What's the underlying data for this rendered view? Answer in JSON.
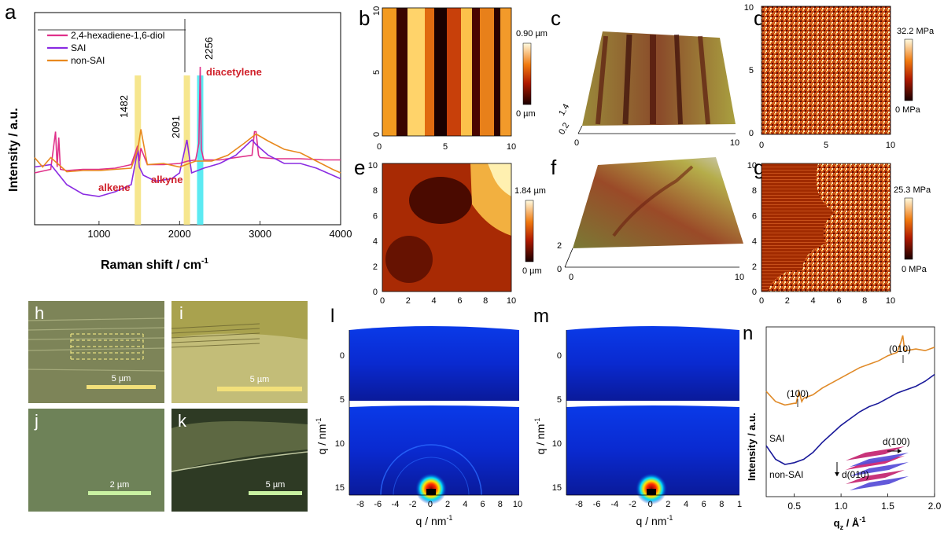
{
  "panels": {
    "a": {
      "letter": "a"
    },
    "b": {
      "letter": "b"
    },
    "c": {
      "letter": "c"
    },
    "d": {
      "letter": "d"
    },
    "e": {
      "letter": "e"
    },
    "f": {
      "letter": "f"
    },
    "g": {
      "letter": "g"
    },
    "h": {
      "letter": "h",
      "scale": "5 µm"
    },
    "i": {
      "letter": "i",
      "scale": "5 µm"
    },
    "j": {
      "letter": "j",
      "scale": "2 µm"
    },
    "k": {
      "letter": "k",
      "scale": "5 µm"
    },
    "l": {
      "letter": "l"
    },
    "m": {
      "letter": "m"
    },
    "n": {
      "letter": "n"
    }
  },
  "colors": {
    "diol": "#e0308a",
    "sai": "#8a2be2",
    "nonsai": "#e8891e",
    "alkene_band": "#f5e27a",
    "alkyne_band": "#f5e27a",
    "diacetylene_band": "#3fe6f0",
    "annotation_red": "#d0202a",
    "n_sai": "#e08a28",
    "n_nonsai": "#1a1a9a"
  },
  "chart_data": [
    {
      "id": "a",
      "type": "line",
      "xlabel": "Raman shift / cm",
      "xlabel_sup": "-1",
      "ylabel": "Intensity / a.u.",
      "xlim": [
        200,
        4000
      ],
      "xticks": [
        "1000",
        "2000",
        "3000",
        "4000"
      ],
      "legend": {
        "placement": "top-left",
        "entries": [
          "2,4-hexadiene-1,6-diol",
          "SAI",
          "non-SAI"
        ]
      },
      "peak_labels": [
        "2256",
        "1482",
        "2091"
      ],
      "annotations": [
        "diacetylene",
        "alkene",
        "alkyne"
      ],
      "bands": [
        1482,
        2091,
        2256
      ],
      "series": [
        {
          "name": "2,4-hexadiene-1,6-diol",
          "x": [
            200,
            400,
            460,
            480,
            500,
            520,
            600,
            800,
            1000,
            1200,
            1400,
            1480,
            1500,
            1520,
            1600,
            1800,
            2000,
            2100,
            2200,
            2240,
            2256,
            2270,
            2300,
            2500,
            2700,
            2900,
            2930,
            2950,
            2980,
            3000,
            3200,
            3500,
            3800,
            4000
          ],
          "y": [
            0.65,
            0.68,
            1.0,
            0.7,
            0.95,
            0.68,
            0.67,
            0.68,
            0.68,
            0.69,
            0.72,
            0.88,
            0.75,
            0.86,
            0.72,
            0.72,
            0.73,
            0.75,
            0.76,
            0.9,
            1.55,
            0.85,
            0.76,
            0.76,
            0.78,
            0.8,
            1.0,
            1.0,
            0.8,
            0.78,
            0.77,
            0.77,
            0.76,
            0.76
          ]
        },
        {
          "name": "SAI",
          "x": [
            200,
            400,
            600,
            800,
            1000,
            1200,
            1400,
            1482,
            1500,
            1550,
            1700,
            1900,
            2000,
            2091,
            2150,
            2300,
            2500,
            2700,
            2900,
            2950,
            3100,
            3300,
            3500,
            3700,
            3900,
            4000
          ],
          "y": [
            0.45,
            0.47,
            0.3,
            0.22,
            0.2,
            0.24,
            0.3,
            0.6,
            0.45,
            0.38,
            0.33,
            0.35,
            0.4,
            0.68,
            0.4,
            0.44,
            0.48,
            0.55,
            0.68,
            0.64,
            0.55,
            0.48,
            0.48,
            0.44,
            0.38,
            0.35
          ]
        },
        {
          "name": "non-SAI",
          "x": [
            200,
            300,
            400,
            600,
            800,
            1000,
            1200,
            1400,
            1482,
            1520,
            1600,
            1800,
            2000,
            2200,
            2400,
            2600,
            2800,
            2950,
            3100,
            3300,
            3500,
            3700,
            3900,
            4000
          ],
          "y": [
            0.08,
            0.0,
            0.08,
            -0.04,
            -0.03,
            -0.03,
            -0.02,
            -0.01,
            0.15,
            0.32,
            0.02,
            0.03,
            0.0,
            0.05,
            0.05,
            0.1,
            0.2,
            0.28,
            0.22,
            0.15,
            0.12,
            0.05,
            -0.02,
            -0.05
          ]
        }
      ]
    },
    {
      "id": "b",
      "type": "heatmap",
      "xticks": [
        "0",
        "5",
        "10"
      ],
      "yticks": [
        "0",
        "5",
        "10"
      ],
      "colorbar": {
        "max_label": "0.90 µm",
        "min_label": "0 µm"
      }
    },
    {
      "id": "c",
      "type": "heatmap",
      "xticks": [
        "0",
        "10"
      ],
      "zticks": [
        "1.4",
        "0.2"
      ]
    },
    {
      "id": "d",
      "type": "heatmap",
      "xticks": [
        "0",
        "5",
        "10"
      ],
      "yticks": [
        "0",
        "5",
        "10"
      ],
      "colorbar": {
        "max_label": "32.2 MPa",
        "min_label": "0 MPa"
      }
    },
    {
      "id": "e",
      "type": "heatmap",
      "xticks": [
        "0",
        "2",
        "4",
        "6",
        "8",
        "10"
      ],
      "yticks": [
        "0",
        "2",
        "4",
        "6",
        "8",
        "10"
      ],
      "colorbar": {
        "max_label": "1.84 µm",
        "min_label": "0 µm"
      }
    },
    {
      "id": "f",
      "type": "heatmap",
      "xticks": [
        "0",
        "10"
      ],
      "zticks": [
        "2",
        "0"
      ]
    },
    {
      "id": "g",
      "type": "heatmap",
      "xticks": [
        "0",
        "2",
        "4",
        "6",
        "8",
        "10"
      ],
      "yticks": [
        "0",
        "2",
        "4",
        "6",
        "8",
        "10"
      ],
      "colorbar": {
        "max_label": "25.3 MPa",
        "min_label": "0 MPa"
      }
    },
    {
      "id": "l",
      "type": "heatmap",
      "xlabel": "q / nm",
      "xlabel_sup": "-1",
      "ylabel": "q / nm",
      "ylabel_sup": "-1",
      "xticks": [
        "-8",
        "-6",
        "-4",
        "-2",
        "0",
        "2",
        "4",
        "6",
        "8",
        "10"
      ],
      "yticks": [
        "0",
        "5",
        "10",
        "15"
      ]
    },
    {
      "id": "m",
      "type": "heatmap",
      "xlabel": "q / nm",
      "xlabel_sup": "-1",
      "ylabel": "q / nm",
      "ylabel_sup": "-1",
      "xticks": [
        "-8",
        "-6",
        "-4",
        "-2",
        "0",
        "2",
        "4",
        "6",
        "8",
        "1"
      ],
      "yticks": [
        "0",
        "5",
        "10",
        "15"
      ]
    },
    {
      "id": "n",
      "type": "line",
      "xlabel": "q",
      "xlabel_sub": "z",
      "xlabel_rest": " / Å",
      "xlabel_sup": "-1",
      "ylabel": "Intensity / a.u.",
      "xlim": [
        0.2,
        2.0
      ],
      "xticks": [
        "0.5",
        "1.0",
        "1.5",
        "2.0"
      ],
      "peak_labels": [
        "(100)",
        "(010)"
      ],
      "series_labels": [
        "SAI",
        "non-SAI"
      ],
      "inset_labels": [
        "d(100)",
        "d(010)"
      ],
      "series": [
        {
          "name": "SAI",
          "x": [
            0.2,
            0.3,
            0.4,
            0.5,
            0.52,
            0.55,
            0.58,
            0.6,
            0.7,
            0.8,
            0.9,
            1.0,
            1.1,
            1.2,
            1.3,
            1.4,
            1.5,
            1.6,
            1.64,
            1.66,
            1.68,
            1.7,
            1.8,
            1.9,
            2.0
          ],
          "y": [
            0.62,
            0.56,
            0.54,
            0.55,
            0.55,
            0.62,
            0.56,
            0.58,
            0.6,
            0.64,
            0.67,
            0.7,
            0.73,
            0.76,
            0.78,
            0.8,
            0.83,
            0.85,
            0.91,
            0.95,
            0.86,
            0.86,
            0.87,
            0.86,
            0.88
          ]
        },
        {
          "name": "non-SAI",
          "x": [
            0.2,
            0.3,
            0.4,
            0.5,
            0.6,
            0.7,
            0.8,
            0.9,
            1.0,
            1.1,
            1.2,
            1.3,
            1.4,
            1.5,
            1.6,
            1.7,
            1.8,
            1.9,
            2.0
          ],
          "y": [
            0.3,
            0.22,
            0.19,
            0.2,
            0.22,
            0.26,
            0.32,
            0.37,
            0.42,
            0.46,
            0.5,
            0.53,
            0.55,
            0.58,
            0.61,
            0.63,
            0.65,
            0.68,
            0.72
          ]
        }
      ]
    }
  ]
}
